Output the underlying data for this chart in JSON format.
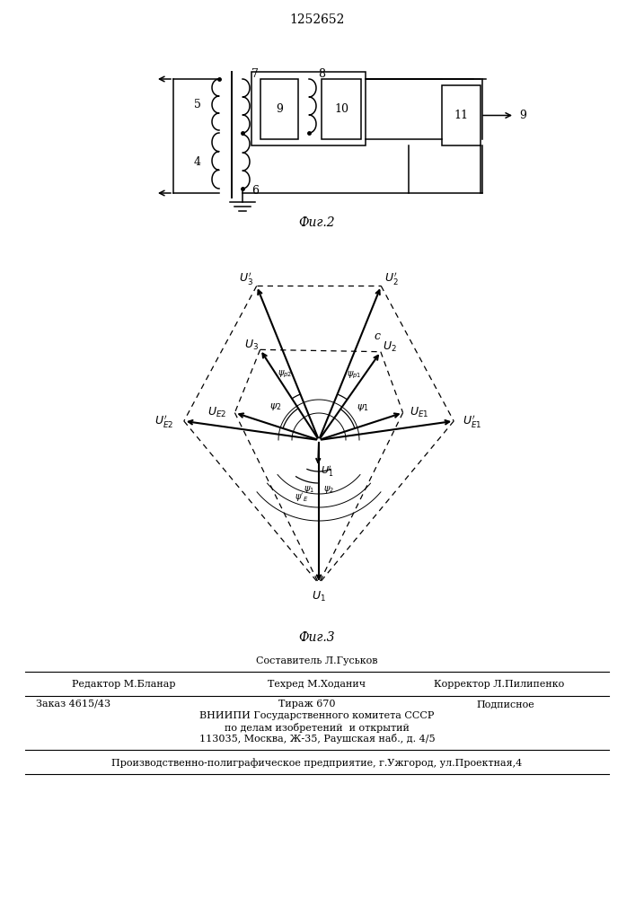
{
  "patent_number": "1252652",
  "fig2_label": "Фиг.2",
  "fig3_label": "Фиг.3",
  "footer": {
    "line1_center_top": "Составитель Л.Гуськов",
    "line1_left": "Редактор М.Бланар",
    "line1_center": "Техред М.Ходанич",
    "line1_right": "Корректор Л.Пилипенко",
    "line2_left": "Заказ 4615/43",
    "line2_center": "Тираж 670",
    "line2_right": "Подписное",
    "line3": "ВНИИПИ Государственного комитета СССР",
    "line4": "по делам изобретений  и открытий",
    "line5": "113035, Москва, Ж-35, Раушская наб., д. 4/5",
    "line6": "Производственно-полиграфическое предприятие, г.Ужгород, ул.Проектная,4"
  }
}
